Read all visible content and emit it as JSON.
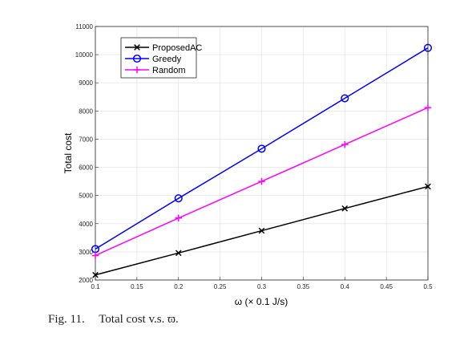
{
  "chart_data": {
    "type": "line",
    "x": [
      0.1,
      0.2,
      0.3,
      0.4,
      0.5
    ],
    "xlim": [
      0.1,
      0.5
    ],
    "ylim": [
      2000,
      11000
    ],
    "xticks": [
      "0.1",
      "0.15",
      "0.2",
      "0.25",
      "0.3",
      "0.35",
      "0.4",
      "0.45",
      "0.5"
    ],
    "yticks": [
      "2000",
      "3000",
      "4000",
      "5000",
      "6000",
      "7000",
      "8000",
      "9000",
      "10000",
      "11000"
    ],
    "xlabel": "ω (× 0.1 J/s)",
    "ylabel": "Total cost",
    "grid": true,
    "legend_position": "top-left",
    "series": [
      {
        "name": "ProposedAC",
        "color": "#000000",
        "marker": "x",
        "values": [
          2180,
          2960,
          3750,
          4540,
          5320
        ]
      },
      {
        "name": "Greedy",
        "color": "#0000ff",
        "marker": "o",
        "values": [
          3100,
          4900,
          6660,
          8450,
          10240
        ]
      },
      {
        "name": "Random",
        "color": "#ff00ff",
        "marker": "+",
        "values": [
          2870,
          4200,
          5500,
          6810,
          8120
        ]
      }
    ]
  },
  "caption": {
    "figure_number": "Fig. 11.",
    "text": "Total cost v.s. ϖ."
  }
}
